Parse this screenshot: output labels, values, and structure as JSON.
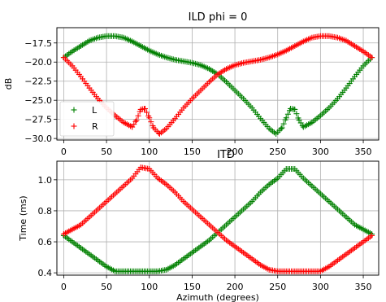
{
  "chart_data": [
    {
      "type": "scatter",
      "title": "ILD phi = 0",
      "xlabel": "",
      "ylabel": "dB",
      "xlim": [
        -8,
        368
      ],
      "ylim": [
        -30.2,
        -15.5
      ],
      "xticks": [
        0,
        50,
        100,
        150,
        200,
        250,
        300,
        350
      ],
      "yticks": [
        -30.0,
        -27.5,
        -25.0,
        -22.5,
        -20.0,
        -17.5
      ],
      "ytick_labels": [
        "−30.0",
        "−27.5",
        "−25.0",
        "−22.5",
        "−20.0",
        "−17.5"
      ],
      "grid": true,
      "legend_position": "lower-left",
      "marker": "+",
      "series": [
        {
          "name": "L",
          "color": "#008000",
          "points": [
            [
              0,
              -19.4
            ],
            [
              10,
              -18.6
            ],
            [
              20,
              -17.9
            ],
            [
              30,
              -17.2
            ],
            [
              40,
              -16.8
            ],
            [
              50,
              -16.6
            ],
            [
              60,
              -16.6
            ],
            [
              70,
              -16.8
            ],
            [
              80,
              -17.3
            ],
            [
              90,
              -17.9
            ],
            [
              100,
              -18.5
            ],
            [
              110,
              -19.0
            ],
            [
              120,
              -19.4
            ],
            [
              130,
              -19.7
            ],
            [
              140,
              -19.9
            ],
            [
              150,
              -20.1
            ],
            [
              160,
              -20.4
            ],
            [
              170,
              -20.9
            ],
            [
              180,
              -21.6
            ],
            [
              190,
              -22.6
            ],
            [
              200,
              -23.7
            ],
            [
              210,
              -24.8
            ],
            [
              220,
              -26.0
            ],
            [
              230,
              -27.4
            ],
            [
              240,
              -28.7
            ],
            [
              248,
              -29.4
            ],
            [
              255,
              -28.6
            ],
            [
              260,
              -27.3
            ],
            [
              265,
              -26.1
            ],
            [
              270,
              -26.2
            ],
            [
              275,
              -27.6
            ],
            [
              280,
              -28.5
            ],
            [
              290,
              -27.9
            ],
            [
              300,
              -27.0
            ],
            [
              310,
              -26.0
            ],
            [
              320,
              -24.8
            ],
            [
              330,
              -23.4
            ],
            [
              340,
              -21.9
            ],
            [
              350,
              -20.5
            ],
            [
              360,
              -19.4
            ]
          ]
        },
        {
          "name": "R",
          "color": "#ff0000",
          "points": [
            [
              0,
              -19.4
            ],
            [
              10,
              -20.5
            ],
            [
              20,
              -21.9
            ],
            [
              30,
              -23.4
            ],
            [
              40,
              -24.8
            ],
            [
              50,
              -26.0
            ],
            [
              60,
              -27.0
            ],
            [
              70,
              -27.9
            ],
            [
              80,
              -28.5
            ],
            [
              85,
              -27.6
            ],
            [
              90,
              -26.2
            ],
            [
              95,
              -26.1
            ],
            [
              100,
              -27.3
            ],
            [
              105,
              -28.6
            ],
            [
              112,
              -29.4
            ],
            [
              120,
              -28.7
            ],
            [
              130,
              -27.4
            ],
            [
              140,
              -26.0
            ],
            [
              150,
              -24.8
            ],
            [
              160,
              -23.7
            ],
            [
              170,
              -22.6
            ],
            [
              180,
              -21.6
            ],
            [
              190,
              -20.9
            ],
            [
              200,
              -20.4
            ],
            [
              210,
              -20.1
            ],
            [
              220,
              -19.9
            ],
            [
              230,
              -19.7
            ],
            [
              240,
              -19.4
            ],
            [
              250,
              -19.0
            ],
            [
              260,
              -18.5
            ],
            [
              270,
              -17.9
            ],
            [
              280,
              -17.3
            ],
            [
              290,
              -16.8
            ],
            [
              300,
              -16.6
            ],
            [
              310,
              -16.6
            ],
            [
              320,
              -16.8
            ],
            [
              330,
              -17.2
            ],
            [
              340,
              -17.9
            ],
            [
              350,
              -18.6
            ],
            [
              360,
              -19.4
            ]
          ]
        }
      ]
    },
    {
      "type": "scatter",
      "title": "ITD",
      "xlabel": "Azimuth (degrees)",
      "ylabel": "Time (ms)",
      "xlim": [
        -8,
        368
      ],
      "ylim": [
        0.385,
        1.12
      ],
      "xticks": [
        0,
        50,
        100,
        150,
        200,
        250,
        300,
        350
      ],
      "yticks": [
        0.4,
        0.6,
        0.8,
        1.0
      ],
      "ytick_labels": [
        "0.4",
        "0.6",
        "0.8",
        "1.0"
      ],
      "grid": true,
      "marker": "+",
      "series": [
        {
          "color": "#008000",
          "points": [
            [
              0,
              0.64
            ],
            [
              10,
              0.6
            ],
            [
              20,
              0.56
            ],
            [
              30,
              0.52
            ],
            [
              40,
              0.48
            ],
            [
              50,
              0.44
            ],
            [
              60,
              0.41
            ],
            [
              70,
              0.41
            ],
            [
              80,
              0.41
            ],
            [
              90,
              0.41
            ],
            [
              100,
              0.41
            ],
            [
              110,
              0.41
            ],
            [
              120,
              0.42
            ],
            [
              130,
              0.45
            ],
            [
              140,
              0.49
            ],
            [
              150,
              0.53
            ],
            [
              160,
              0.57
            ],
            [
              170,
              0.61
            ],
            [
              180,
              0.66
            ],
            [
              190,
              0.71
            ],
            [
              200,
              0.76
            ],
            [
              210,
              0.81
            ],
            [
              220,
              0.86
            ],
            [
              230,
              0.92
            ],
            [
              240,
              0.97
            ],
            [
              250,
              1.01
            ],
            [
              260,
              1.07
            ],
            [
              270,
              1.07
            ],
            [
              280,
              1.01
            ],
            [
              290,
              0.96
            ],
            [
              300,
              0.91
            ],
            [
              310,
              0.86
            ],
            [
              320,
              0.81
            ],
            [
              330,
              0.76
            ],
            [
              340,
              0.71
            ],
            [
              350,
              0.68
            ],
            [
              360,
              0.65
            ]
          ]
        },
        {
          "color": "#ff0000",
          "points": [
            [
              0,
              0.65
            ],
            [
              10,
              0.68
            ],
            [
              20,
              0.71
            ],
            [
              30,
              0.76
            ],
            [
              40,
              0.81
            ],
            [
              50,
              0.86
            ],
            [
              60,
              0.91
            ],
            [
              70,
              0.96
            ],
            [
              80,
              1.01
            ],
            [
              90,
              1.08
            ],
            [
              100,
              1.07
            ],
            [
              110,
              1.01
            ],
            [
              120,
              0.97
            ],
            [
              130,
              0.92
            ],
            [
              140,
              0.86
            ],
            [
              150,
              0.81
            ],
            [
              160,
              0.76
            ],
            [
              170,
              0.71
            ],
            [
              180,
              0.66
            ],
            [
              190,
              0.61
            ],
            [
              200,
              0.57
            ],
            [
              210,
              0.53
            ],
            [
              220,
              0.49
            ],
            [
              230,
              0.45
            ],
            [
              240,
              0.42
            ],
            [
              250,
              0.41
            ],
            [
              260,
              0.41
            ],
            [
              270,
              0.41
            ],
            [
              280,
              0.41
            ],
            [
              290,
              0.41
            ],
            [
              300,
              0.41
            ],
            [
              310,
              0.44
            ],
            [
              320,
              0.48
            ],
            [
              330,
              0.52
            ],
            [
              340,
              0.56
            ],
            [
              350,
              0.6
            ],
            [
              360,
              0.64
            ]
          ]
        }
      ]
    }
  ]
}
